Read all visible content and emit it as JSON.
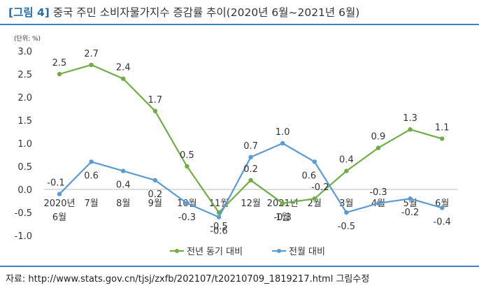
{
  "figure": {
    "tag": "[그림 4]",
    "title": "중국 주민 소비자물가지수 증감률 추이(2020년 6월~2021년 6월)"
  },
  "source": "자료: http://www.stats.gov.cn/tjsj/zxfb/202107/t20210709_1819217.html 그림수정",
  "chart_data": {
    "type": "line",
    "unit": "(단위: %)",
    "categories": [
      [
        "2020년",
        "6월"
      ],
      [
        "7월"
      ],
      [
        "8월"
      ],
      [
        "9월"
      ],
      [
        "10월"
      ],
      [
        "11월"
      ],
      [
        "12월"
      ],
      [
        "2021년",
        "1월"
      ],
      [
        "2월"
      ],
      [
        "3월"
      ],
      [
        "4월"
      ],
      [
        "5월"
      ],
      [
        "6월"
      ]
    ],
    "ylim": [
      -1.0,
      3.0
    ],
    "yticks": [
      "3.0",
      "2.5",
      "2.0",
      "1.5",
      "1.0",
      "0.5",
      "0.0",
      "-0.5",
      "-1.0"
    ],
    "grid": false,
    "legend_position": "bottom",
    "series": [
      {
        "name": "전년 동기 대비",
        "color": "#70ad47",
        "values": [
          2.5,
          2.7,
          2.4,
          1.7,
          0.5,
          -0.5,
          0.2,
          -0.3,
          -0.2,
          0.4,
          0.9,
          1.3,
          1.1
        ],
        "labels": [
          "2.5",
          "2.7",
          "2.4",
          "1.7",
          "0.5",
          "-0.5",
          "0.2",
          "-0.3",
          "-0.2",
          "0.4",
          "0.9",
          "1.3",
          "1.1"
        ]
      },
      {
        "name": "전월 대비",
        "color": "#5b9bd5",
        "values": [
          -0.1,
          0.6,
          0.4,
          0.2,
          -0.3,
          -0.6,
          0.7,
          1.0,
          0.6,
          -0.5,
          -0.3,
          -0.2,
          -0.4
        ],
        "labels": [
          "-0.1",
          "0.6",
          "0.4",
          "0.2",
          "-0.3",
          "-0.6",
          "0.7",
          "1.0",
          "0.6",
          "-0.5",
          "-0.3",
          "-0.2",
          "-0.4"
        ]
      }
    ]
  }
}
